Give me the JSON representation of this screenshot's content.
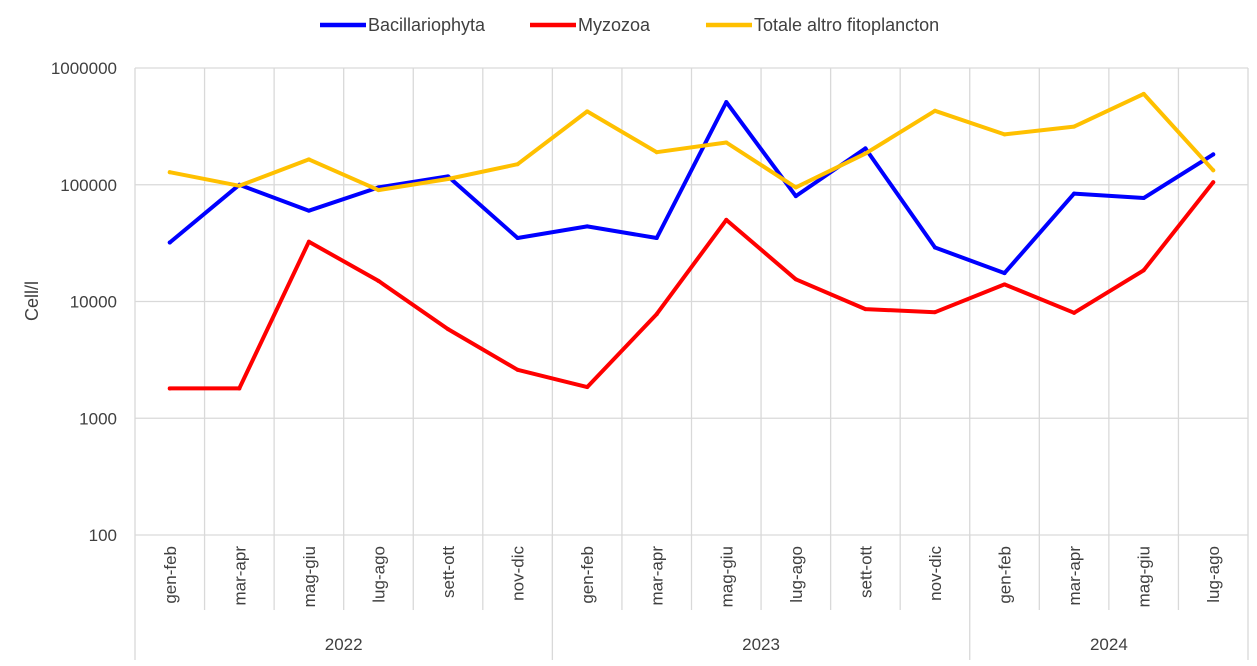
{
  "chart_data": {
    "type": "line",
    "ylabel": "Cell/l",
    "y_scale": "log",
    "ylim": [
      100,
      1000000
    ],
    "y_ticks": [
      "100",
      "1000",
      "10000",
      "100000",
      "1000000"
    ],
    "y_tick_values": [
      100,
      1000,
      10000,
      100000,
      1000000
    ],
    "categories": [
      "gen-feb",
      "mar-apr",
      "mag-giu",
      "lug-ago",
      "sett-ott",
      "nov-dic",
      "gen-feb",
      "mar-apr",
      "mag-giu",
      "lug-ago",
      "sett-ott",
      "nov-dic",
      "gen-feb",
      "mar-apr",
      "mag-giu",
      "lug-ago"
    ],
    "groups": [
      {
        "label": "2022",
        "count": 6
      },
      {
        "label": "2023",
        "count": 6
      },
      {
        "label": "2024",
        "count": 4
      }
    ],
    "legend_position": "top-center",
    "grid": true,
    "series": [
      {
        "name": "Bacillariophyta",
        "color": "#0000ff",
        "values": [
          32000,
          100000,
          60000,
          95000,
          118000,
          35000,
          44000,
          35000,
          510000,
          80000,
          205000,
          29000,
          17500,
          84000,
          77000,
          182000
        ]
      },
      {
        "name": "Myzozoa",
        "color": "#ff0000",
        "values": [
          1800,
          1800,
          32500,
          15000,
          5800,
          2600,
          1850,
          7800,
          50000,
          15500,
          8600,
          8100,
          14000,
          8000,
          18500,
          105000
        ]
      },
      {
        "name": "Totale altro fitoplancton",
        "color": "#ffc000",
        "values": [
          128000,
          98000,
          165000,
          90000,
          112000,
          150000,
          425000,
          190000,
          230000,
          95000,
          185000,
          430000,
          270000,
          315000,
          600000,
          133000
        ]
      }
    ]
  }
}
